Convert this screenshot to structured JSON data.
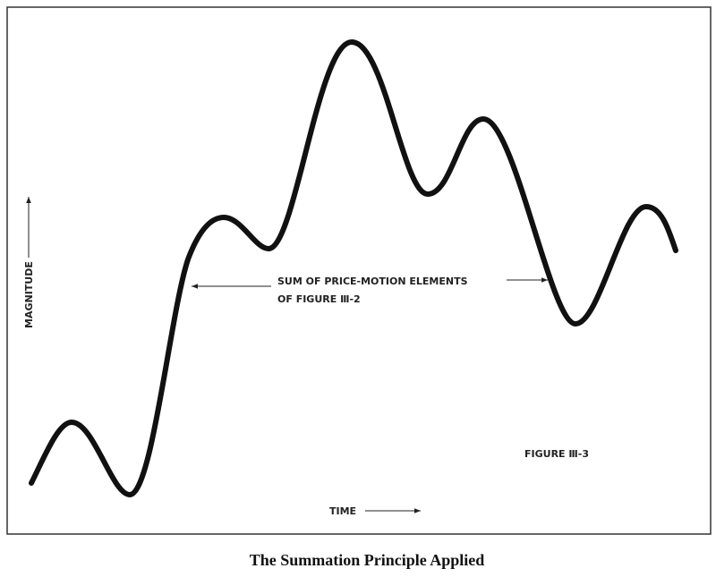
{
  "figure": {
    "annotation": [
      "SUM OF PRICE-MOTION ELEMENTS",
      "OF FIGURE Ⅲ-2"
    ],
    "figure_label": "FIGURE Ⅲ-3",
    "x_label": "TIME",
    "y_label": "MAGNITUDE"
  },
  "caption": "The Summation Principle Applied"
}
